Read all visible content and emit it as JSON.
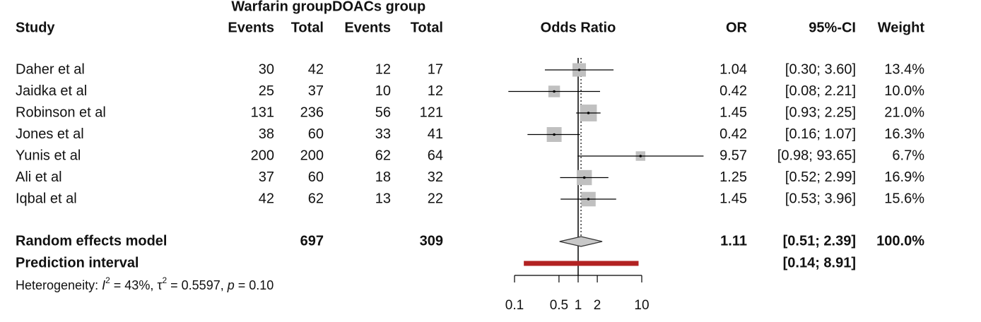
{
  "chart_data": {
    "type": "forest",
    "header": {
      "group1": "Warfarin group",
      "group2": "DOACs group",
      "study": "Study",
      "events1": "Events",
      "total1": "Total",
      "events2": "Events",
      "total2": "Total",
      "plot": "Odds Ratio",
      "or": "OR",
      "ci": "95%-CI",
      "weight": "Weight"
    },
    "studies": [
      {
        "name": "Daher et al",
        "e1": 30,
        "n1": 42,
        "e2": 12,
        "n2": 17,
        "or": 1.04,
        "ci_lower": 0.3,
        "ci_upper": 3.6,
        "ci_label": "[0.30; 3.60]",
        "weight": 13.4,
        "weight_label": "13.4%"
      },
      {
        "name": "Jaidka et al",
        "e1": 25,
        "n1": 37,
        "e2": 10,
        "n2": 12,
        "or": 0.42,
        "ci_lower": 0.08,
        "ci_upper": 2.21,
        "ci_label": "[0.08; 2.21]",
        "weight": 10.0,
        "weight_label": "10.0%"
      },
      {
        "name": "Robinson et al",
        "e1": 131,
        "n1": 236,
        "e2": 56,
        "n2": 121,
        "or": 1.45,
        "ci_lower": 0.93,
        "ci_upper": 2.25,
        "ci_label": "[0.93; 2.25]",
        "weight": 21.0,
        "weight_label": "21.0%"
      },
      {
        "name": "Jones et al",
        "e1": 38,
        "n1": 60,
        "e2": 33,
        "n2": 41,
        "or": 0.42,
        "ci_lower": 0.16,
        "ci_upper": 1.07,
        "ci_label": "[0.16; 1.07]",
        "weight": 16.3,
        "weight_label": "16.3%"
      },
      {
        "name": "Yunis et al",
        "e1": 200,
        "n1": 200,
        "e2": 62,
        "n2": 64,
        "or": 9.57,
        "ci_lower": 0.98,
        "ci_upper": 93.65,
        "ci_label": "[0.98; 93.65]",
        "weight": 6.7,
        "weight_label": "6.7%"
      },
      {
        "name": "Ali et al",
        "e1": 37,
        "n1": 60,
        "e2": 18,
        "n2": 32,
        "or": 1.25,
        "ci_lower": 0.52,
        "ci_upper": 2.99,
        "ci_label": "[0.52; 2.99]",
        "weight": 16.9,
        "weight_label": "16.9%"
      },
      {
        "name": "Iqbal et al",
        "e1": 42,
        "n1": 62,
        "e2": 13,
        "n2": 22,
        "or": 1.45,
        "ci_lower": 0.53,
        "ci_upper": 3.96,
        "ci_label": "[0.53; 3.96]",
        "weight": 15.6,
        "weight_label": "15.6%"
      }
    ],
    "pooled": {
      "name": "Random effects model",
      "n1": 697,
      "n2": 309,
      "or": 1.11,
      "ci_lower": 0.51,
      "ci_upper": 2.39,
      "ci_label": "[0.51; 2.39]",
      "weight": 100.0,
      "weight_label": "100.0%"
    },
    "prediction": {
      "name": "Prediction interval",
      "lower": 0.14,
      "upper": 8.91,
      "label": "[0.14; 8.91]",
      "color": "#b22222"
    },
    "heterogeneity": [
      {
        "text": "Heterogeneity: "
      },
      {
        "text": "I",
        "italic": true
      },
      {
        "text": "2",
        "sup": true
      },
      {
        "text": " = 43%, "
      },
      {
        "text": "τ"
      },
      {
        "text": "2",
        "sup": true
      },
      {
        "text": " = 0.5597, "
      },
      {
        "text": "p",
        "italic": true
      },
      {
        "text": " = 0.10"
      }
    ],
    "xscale": "log",
    "xlim": [
      0.1,
      10
    ],
    "xticks": [
      0.1,
      0.5,
      1,
      2,
      10
    ],
    "null_value": 1,
    "box_color": "#c0c0c0"
  }
}
